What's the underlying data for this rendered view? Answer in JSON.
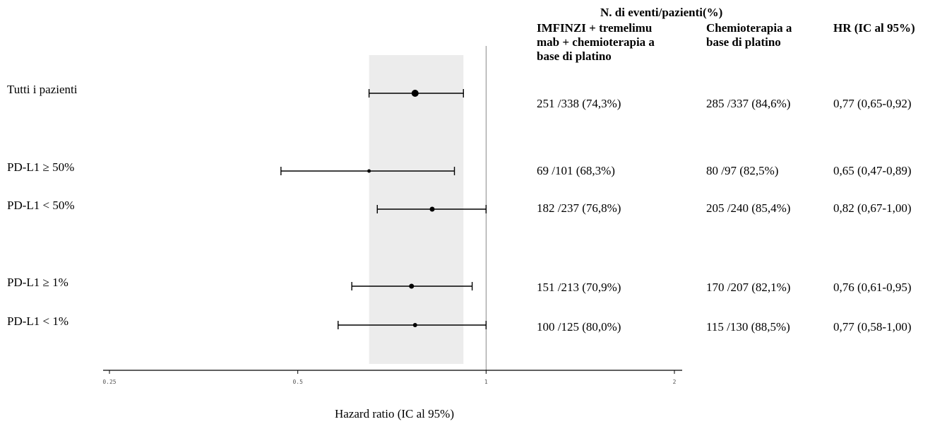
{
  "chart_data": {
    "type": "forest",
    "xscale": "log",
    "xlim": [
      0.25,
      2
    ],
    "xticks": [
      "0.25",
      "0.5",
      "1",
      "2"
    ],
    "xlabel": "Hazard ratio (IC al 95%)",
    "reference_line": 1,
    "shaded_band": [
      0.65,
      0.92
    ],
    "rows": [
      {
        "label": "Tutti i pazienti",
        "hr": 0.77,
        "lo": 0.65,
        "hi": 0.92,
        "arm1": "251 /338 (74,3%)",
        "arm2": "285 /337 (84,6%)",
        "hr_text": "0,77 (0,65-0,92)"
      },
      {
        "label": "PD-L1 ≥ 50%",
        "hr": 0.65,
        "lo": 0.47,
        "hi": 0.89,
        "arm1": "69 /101 (68,3%)",
        "arm2": "80 /97 (82,5%)",
        "hr_text": "0,65 (0,47-0,89)"
      },
      {
        "label": "PD-L1 < 50%",
        "hr": 0.82,
        "lo": 0.67,
        "hi": 1.0,
        "arm1": "182 /237 (76,8%)",
        "arm2": "205 /240 (85,4%)",
        "hr_text": "0,82 (0,67-1,00)"
      },
      {
        "label": "PD-L1 ≥ 1%",
        "hr": 0.76,
        "lo": 0.61,
        "hi": 0.95,
        "arm1": "151 /213 (70,9%)",
        "arm2": "170 /207 (82,1%)",
        "hr_text": "0,76 (0,61-0,95)"
      },
      {
        "label": "PD-L1  < 1%",
        "hr": 0.77,
        "lo": 0.58,
        "hi": 1.0,
        "arm1": "100 /125 (80,0%)",
        "arm2": "115 /130 (88,5%)",
        "hr_text": "0,77 (0,58-1,00)"
      }
    ]
  },
  "table": {
    "group_header": "N. di eventi/pazienti(%)",
    "col_arm1": "IMFINZI + tremelimu\nmab + chemioterapia a\nbase di platino",
    "col_arm2": "Chemioterapia a\nbase di platino",
    "col_hr": "HR (IC al 95%)"
  },
  "colors": {
    "band": "#ececec",
    "ref_line": "#888888",
    "marks": "#000000"
  }
}
